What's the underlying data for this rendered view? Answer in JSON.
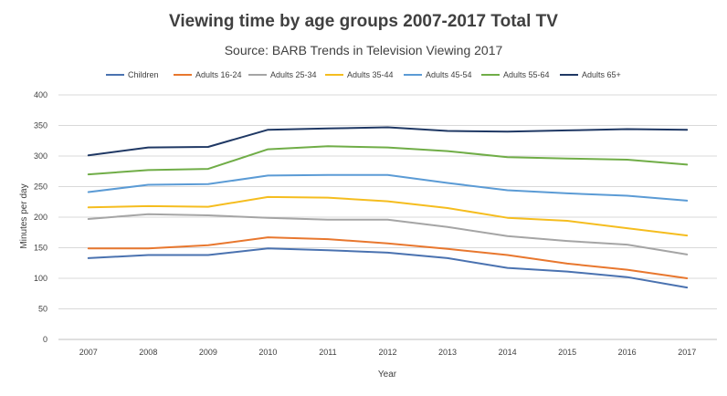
{
  "chart_data": {
    "type": "line",
    "title": "Viewing time by age groups 2007-2017 Total TV",
    "subtitle": "Source: BARB Trends in Television Viewing 2017",
    "xlabel": "Year",
    "ylabel": "Minutes per day",
    "ylim": [
      0,
      400
    ],
    "yticks": [
      0,
      50,
      100,
      150,
      200,
      250,
      300,
      350,
      400
    ],
    "grid": true,
    "legend_position": "top",
    "categories": [
      "2007",
      "2008",
      "2009",
      "2010",
      "2011",
      "2012",
      "2013",
      "2014",
      "2015",
      "2016",
      "2017"
    ],
    "series": [
      {
        "name": "Children",
        "color": "#4a72b0",
        "values": [
          133,
          138,
          138,
          149,
          146,
          142,
          133,
          117,
          111,
          102,
          85
        ]
      },
      {
        "name": "Adults 16-24",
        "color": "#e8772e",
        "values": [
          149,
          149,
          154,
          167,
          164,
          157,
          148,
          138,
          124,
          114,
          100
        ]
      },
      {
        "name": "Adults 25-34",
        "color": "#a5a5a5",
        "values": [
          197,
          205,
          203,
          199,
          196,
          196,
          184,
          169,
          161,
          155,
          139
        ]
      },
      {
        "name": "Adults 35-44",
        "color": "#f5bd1f",
        "values": [
          216,
          218,
          217,
          233,
          232,
          226,
          215,
          199,
          194,
          182,
          170
        ]
      },
      {
        "name": "Adults 45-54",
        "color": "#5b9bd5",
        "values": [
          241,
          253,
          254,
          268,
          269,
          269,
          256,
          244,
          239,
          235,
          227
        ]
      },
      {
        "name": "Adults 55-64",
        "color": "#70ad47",
        "values": [
          270,
          277,
          279,
          311,
          316,
          314,
          308,
          298,
          296,
          294,
          286
        ]
      },
      {
        "name": "Adults 65+",
        "color": "#1f3864",
        "values": [
          301,
          314,
          315,
          343,
          345,
          347,
          341,
          340,
          342,
          344,
          343
        ]
      }
    ]
  }
}
